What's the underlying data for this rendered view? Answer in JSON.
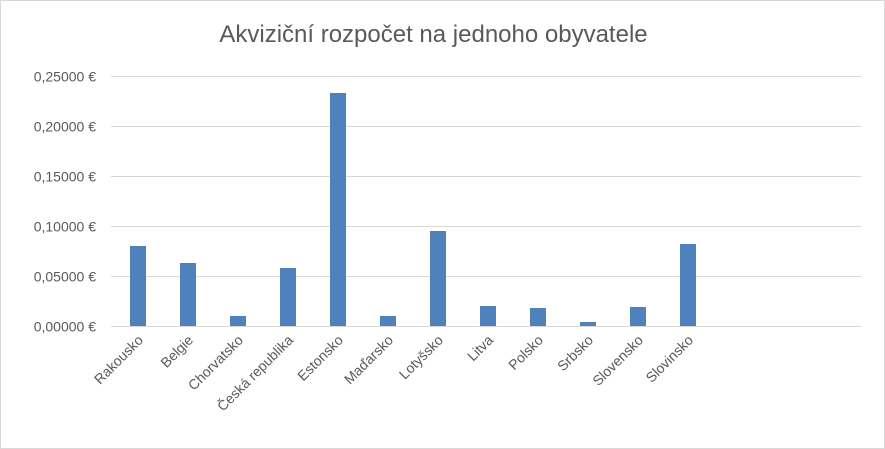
{
  "chart_data": {
    "type": "bar",
    "title": "Akviziční rozpočet na jednoho obyvatele",
    "xlabel": "",
    "ylabel": "",
    "categories": [
      "Rakousko",
      "Belgie",
      "Chorvatsko",
      "Česká republika",
      "Estonsko",
      "Maďarsko",
      "Lotyšsko",
      "Litva",
      "Polsko",
      "Srbsko",
      "Slovensko",
      "Slovinsko"
    ],
    "values": [
      0.08,
      0.063,
      0.01,
      0.058,
      0.233,
      0.01,
      0.095,
      0.02,
      0.018,
      0.004,
      0.019,
      0.082
    ],
    "ylim": [
      0,
      0.25
    ],
    "yticks": [
      0,
      0.05,
      0.1,
      0.15,
      0.2,
      0.25
    ],
    "ytick_labels": [
      "0,00000 €",
      "0,05000 €",
      "0,10000 €",
      "0,15000 €",
      "0,20000 €",
      "0,25000 €"
    ],
    "grid": true,
    "legend": "none",
    "bar_color": "#4f81bd",
    "grid_color": "#d9d9d9",
    "text_color": "#595959"
  }
}
